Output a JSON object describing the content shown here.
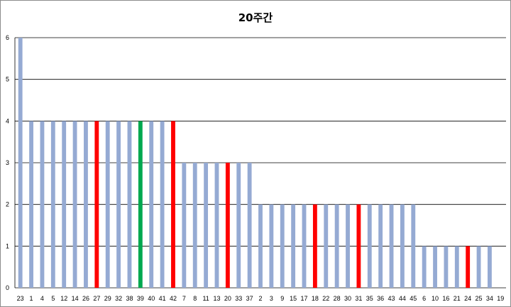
{
  "chart_data": {
    "type": "bar",
    "title": "20주간",
    "xlabel": "",
    "ylabel": "",
    "ylim": [
      0,
      6
    ],
    "yticks": [
      "0",
      "1",
      "2",
      "3",
      "4",
      "5",
      "6"
    ],
    "grid": true,
    "legend": "none",
    "categories": [
      "23",
      "1",
      "4",
      "5",
      "12",
      "14",
      "26",
      "27",
      "29",
      "32",
      "38",
      "39",
      "40",
      "41",
      "42",
      "7",
      "8",
      "11",
      "13",
      "20",
      "33",
      "37",
      "2",
      "3",
      "9",
      "15",
      "17",
      "18",
      "22",
      "28",
      "30",
      "31",
      "35",
      "36",
      "43",
      "44",
      "45",
      "6",
      "10",
      "16",
      "21",
      "24",
      "25",
      "34",
      "19"
    ],
    "values": [
      6,
      4,
      4,
      4,
      4,
      4,
      4,
      4,
      4,
      4,
      4,
      4,
      4,
      4,
      4,
      3,
      3,
      3,
      3,
      3,
      3,
      3,
      2,
      2,
      2,
      2,
      2,
      2,
      2,
      2,
      2,
      2,
      2,
      2,
      2,
      2,
      2,
      1,
      1,
      1,
      1,
      1,
      1,
      1,
      0
    ],
    "highlight_red": [
      "27",
      "42",
      "20",
      "18",
      "31",
      "24"
    ],
    "highlight_green": [
      "39"
    ],
    "colors": {
      "default": "#95aad3",
      "red": "#ff0000",
      "green": "#00a84f",
      "grid": "#000000"
    }
  }
}
